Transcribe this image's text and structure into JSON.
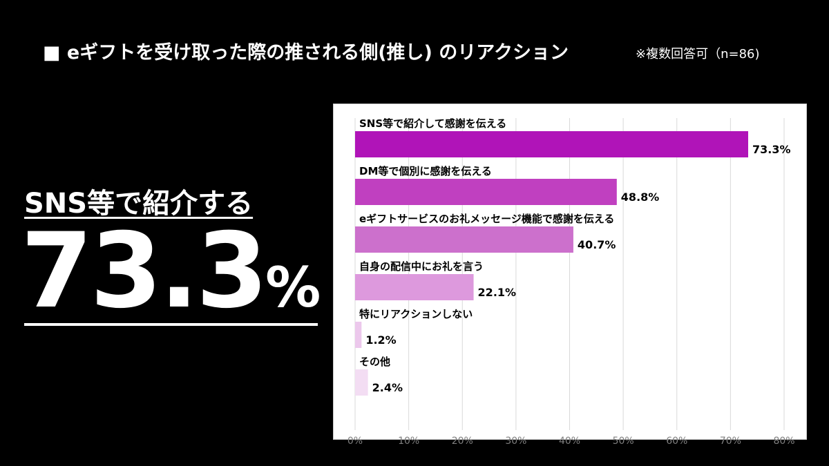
{
  "header": {
    "title": "■ eギフトを受け取った際の推される側(推し) のリアクション",
    "note": "※複数回答可（n=86)"
  },
  "highlight": {
    "label": "SNS等で紹介する",
    "value": "73.3",
    "unit": "%"
  },
  "chart_data": {
    "type": "bar",
    "orientation": "horizontal",
    "categories": [
      "SNS等で紹介して感謝を伝える",
      "DM等で個別に感謝を伝える",
      "eギフトサービスのお礼メッセージ機能で感謝を伝える",
      "自身の配信中にお礼を言う",
      "特にリアクションしない",
      "その他"
    ],
    "values": [
      73.3,
      48.8,
      40.7,
      22.1,
      1.2,
      2.4
    ],
    "data_labels": [
      "73.3%",
      "48.8%",
      "40.7%",
      "22.1%",
      "1.2%",
      "2.4%"
    ],
    "colors": [
      "#b014b8",
      "#c040c0",
      "#cc70cc",
      "#dd99dd",
      "#ecc8ec",
      "#f3ddf3"
    ],
    "xlim": [
      0,
      80
    ],
    "xticks": [
      "0%",
      "10%",
      "20%",
      "30%",
      "40%",
      "50%",
      "60%",
      "70%",
      "80%"
    ],
    "grid": true,
    "xlabel": "",
    "ylabel": ""
  }
}
